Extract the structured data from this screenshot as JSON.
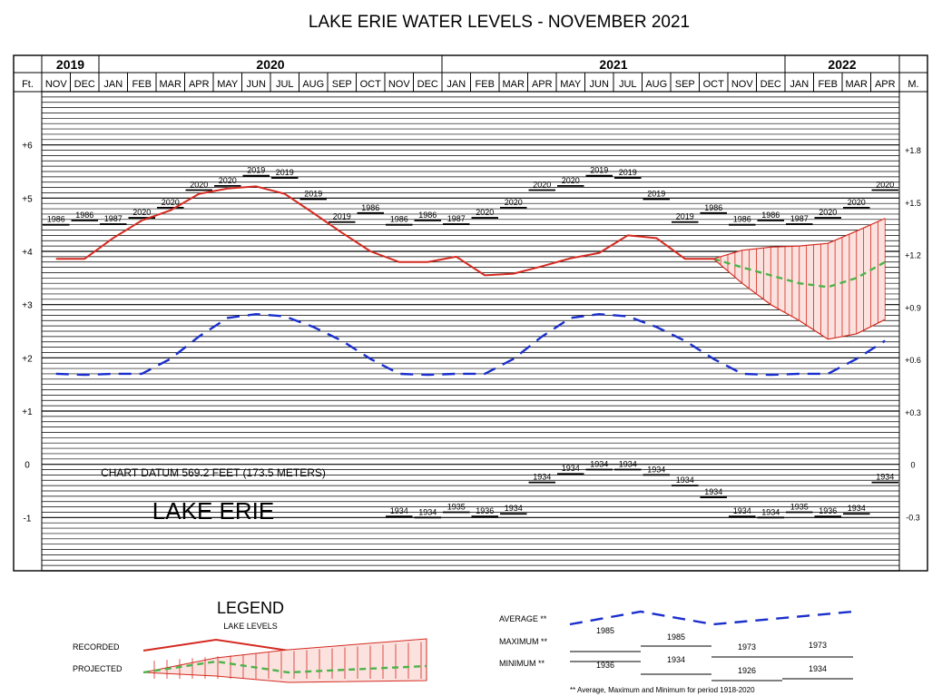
{
  "chart_data": {
    "type": "line",
    "title": "LAKE ERIE WATER LEVELS - NOVEMBER 2021",
    "years": [
      {
        "label": "2019",
        "start": 0,
        "end": 2
      },
      {
        "label": "2020",
        "start": 2,
        "end": 14
      },
      {
        "label": "2021",
        "start": 14,
        "end": 26
      },
      {
        "label": "2022",
        "start": 26,
        "end": 30
      }
    ],
    "left_axis_label": "Ft.",
    "right_axis_label": "M.",
    "months": [
      "NOV",
      "DEC",
      "JAN",
      "FEB",
      "MAR",
      "APR",
      "MAY",
      "JUN",
      "JUL",
      "AUG",
      "SEP",
      "OCT",
      "NOV",
      "DEC",
      "JAN",
      "FEB",
      "MAR",
      "APR",
      "MAY",
      "JUN",
      "JUL",
      "AUG",
      "SEP",
      "OCT",
      "NOV",
      "DEC",
      "JAN",
      "FEB",
      "MAR",
      "APR"
    ],
    "ylim": [
      -2,
      7
    ],
    "feet_ticks": [
      {
        "v": 6,
        "label": "+6"
      },
      {
        "v": 5,
        "label": "+5"
      },
      {
        "v": 4,
        "label": "+4"
      },
      {
        "v": 3,
        "label": "+3"
      },
      {
        "v": 2,
        "label": "+2"
      },
      {
        "v": 1,
        "label": "+1"
      },
      {
        "v": 0,
        "label": "0"
      },
      {
        "v": -1,
        "label": "-1"
      }
    ],
    "meter_ticks": [
      {
        "v": 5.906,
        "label": "+1.8"
      },
      {
        "v": 4.921,
        "label": "+1.5"
      },
      {
        "v": 3.937,
        "label": "+1.2"
      },
      {
        "v": 2.953,
        "label": "+0.9"
      },
      {
        "v": 1.969,
        "label": "+0.6"
      },
      {
        "v": 0.984,
        "label": "+0.3"
      },
      {
        "v": 0,
        "label": "0"
      },
      {
        "v": -0.984,
        "label": "-0.3"
      }
    ],
    "grid": true,
    "series": [
      {
        "name": "RECORDED",
        "color": "#d42a20",
        "style": "solid",
        "x": [
          0,
          1,
          2,
          3,
          4,
          5,
          6,
          7,
          8,
          9,
          10,
          11,
          12,
          13,
          14,
          15,
          16,
          17,
          18,
          19,
          20,
          21,
          22,
          23
        ],
        "y": [
          3.86,
          3.86,
          4.25,
          4.58,
          4.77,
          5.08,
          5.18,
          5.22,
          5.08,
          4.72,
          4.35,
          4.0,
          3.8,
          3.8,
          3.9,
          3.55,
          3.58,
          3.72,
          3.87,
          3.97,
          4.3,
          4.25,
          3.86,
          3.86
        ]
      },
      {
        "name": "AVERAGE",
        "color": "#1a2fcc",
        "style": "dashed",
        "x": [
          0,
          1,
          2,
          3,
          4,
          5,
          6,
          7,
          8,
          9,
          10,
          11,
          12,
          13,
          14,
          15,
          16,
          17,
          18,
          19,
          20,
          21,
          22,
          23,
          24,
          25,
          26,
          27,
          28,
          29
        ],
        "y": [
          1.7,
          1.68,
          1.7,
          1.7,
          1.98,
          2.4,
          2.75,
          2.82,
          2.78,
          2.58,
          2.32,
          1.98,
          1.7,
          1.68,
          1.7,
          1.7,
          1.98,
          2.4,
          2.75,
          2.82,
          2.78,
          2.58,
          2.32,
          1.98,
          1.7,
          1.68,
          1.7,
          1.7,
          1.98,
          2.32
        ]
      },
      {
        "name": "PROJECTED",
        "color": "#4db34a",
        "style": "dashed",
        "x": [
          23,
          24,
          25,
          26,
          27,
          28,
          29
        ],
        "y": [
          3.86,
          3.7,
          3.55,
          3.4,
          3.33,
          3.5,
          3.8
        ]
      },
      {
        "name": "PROJECTED_MAX",
        "color": "#d42a20",
        "style": "solid",
        "x": [
          23,
          24,
          25,
          26,
          27,
          28,
          29
        ],
        "y": [
          3.86,
          4.02,
          4.08,
          4.1,
          4.15,
          4.38,
          4.62
        ]
      },
      {
        "name": "PROJECTED_MIN",
        "color": "#d42a20",
        "style": "solid",
        "x": [
          23,
          24,
          25,
          26,
          27,
          28,
          29
        ],
        "y": [
          3.86,
          3.4,
          3.0,
          2.7,
          2.35,
          2.45,
          2.72
        ]
      }
    ],
    "max_records": [
      {
        "i": 0,
        "year": "1986",
        "y": 4.5
      },
      {
        "i": 1,
        "year": "1986",
        "y": 4.58
      },
      {
        "i": 2,
        "year": "1987",
        "y": 4.51
      },
      {
        "i": 3,
        "year": "2020",
        "y": 4.63
      },
      {
        "i": 4,
        "year": "2020",
        "y": 4.82
      },
      {
        "i": 5,
        "year": "2020",
        "y": 5.15
      },
      {
        "i": 6,
        "year": "2020",
        "y": 5.23
      },
      {
        "i": 7,
        "year": "2019",
        "y": 5.42
      },
      {
        "i": 8,
        "year": "2019",
        "y": 5.38
      },
      {
        "i": 9,
        "year": "2019",
        "y": 4.98
      },
      {
        "i": 10,
        "year": "2019",
        "y": 4.55
      },
      {
        "i": 11,
        "year": "1986",
        "y": 4.72
      },
      {
        "i": 12,
        "year": "1986",
        "y": 4.5
      },
      {
        "i": 13,
        "year": "1986",
        "y": 4.58
      },
      {
        "i": 14,
        "year": "1987",
        "y": 4.51
      },
      {
        "i": 15,
        "year": "2020",
        "y": 4.63
      },
      {
        "i": 16,
        "year": "2020",
        "y": 4.82
      },
      {
        "i": 17,
        "year": "2020",
        "y": 5.15
      },
      {
        "i": 18,
        "year": "2020",
        "y": 5.23
      },
      {
        "i": 19,
        "year": "2019",
        "y": 5.42
      },
      {
        "i": 20,
        "year": "2019",
        "y": 5.38
      },
      {
        "i": 21,
        "year": "2019",
        "y": 4.98
      },
      {
        "i": 22,
        "year": "2019",
        "y": 4.55
      },
      {
        "i": 23,
        "year": "1986",
        "y": 4.72
      },
      {
        "i": 24,
        "year": "1986",
        "y": 4.5
      },
      {
        "i": 25,
        "year": "1986",
        "y": 4.58
      },
      {
        "i": 26,
        "year": "1987",
        "y": 4.51
      },
      {
        "i": 27,
        "year": "2020",
        "y": 4.63
      },
      {
        "i": 28,
        "year": "2020",
        "y": 4.82
      },
      {
        "i": 29,
        "year": "2020",
        "y": 5.15
      }
    ],
    "min_records": [
      {
        "i": 12,
        "year": "1934",
        "y": -0.98
      },
      {
        "i": 13,
        "year": "1934",
        "y": -1.0
      },
      {
        "i": 14,
        "year": "1935",
        "y": -0.9
      },
      {
        "i": 15,
        "year": "1936",
        "y": -0.98
      },
      {
        "i": 16,
        "year": "1934",
        "y": -0.93
      },
      {
        "i": 17,
        "year": "1934",
        "y": -0.34
      },
      {
        "i": 18,
        "year": "1934",
        "y": -0.18
      },
      {
        "i": 19,
        "year": "1934",
        "y": -0.1
      },
      {
        "i": 20,
        "year": "1934",
        "y": -0.1
      },
      {
        "i": 21,
        "year": "1934",
        "y": -0.2
      },
      {
        "i": 22,
        "year": "1934",
        "y": -0.4
      },
      {
        "i": 23,
        "year": "1934",
        "y": -0.62
      },
      {
        "i": 24,
        "year": "1934",
        "y": -0.98
      },
      {
        "i": 25,
        "year": "1934",
        "y": -1.0
      },
      {
        "i": 26,
        "year": "1935",
        "y": -0.9
      },
      {
        "i": 27,
        "year": "1936",
        "y": -0.98
      },
      {
        "i": 28,
        "year": "1934",
        "y": -0.93
      },
      {
        "i": 29,
        "year": "1934",
        "y": -0.34
      }
    ],
    "annotations": {
      "datum": "CHART DATUM  569.2 FEET (173.5 METERS)",
      "lake_name": "LAKE ERIE"
    },
    "legend": {
      "title": "LEGEND",
      "subtitle": "LAKE LEVELS",
      "recorded": "RECORDED",
      "projected": "PROJECTED",
      "average": "AVERAGE **",
      "maximum": "MAXIMUM **",
      "minimum": "MINIMUM **",
      "max_years": [
        "1985",
        "1985",
        "1973",
        "1973"
      ],
      "min_years": [
        "1936",
        "1934",
        "1926",
        "1934"
      ],
      "footnote": "** Average, Maximum and Minimum for period 1918-2020"
    }
  }
}
